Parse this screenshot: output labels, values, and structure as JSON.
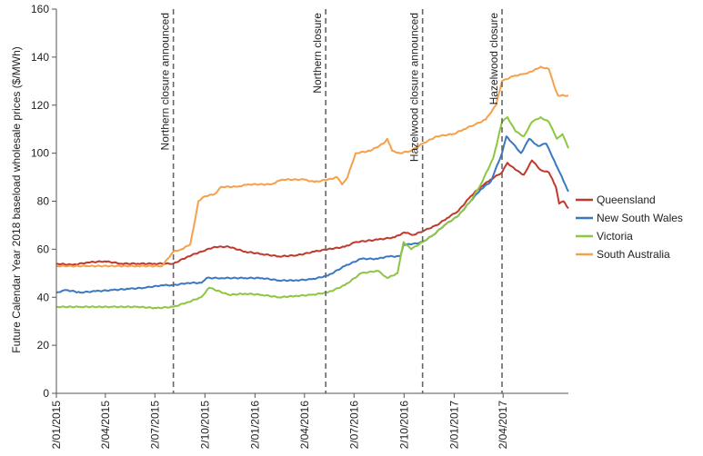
{
  "chart_data": {
    "type": "line",
    "title": "",
    "xlabel": "",
    "ylabel": "Future Calendar Year 2018 baseload wholesale prices ($/MWh)",
    "ylim": [
      0,
      160
    ],
    "yticks": [
      0,
      20,
      40,
      60,
      80,
      100,
      120,
      140,
      160
    ],
    "x_range": [
      "2015-01-02",
      "2017-07-31"
    ],
    "x_ticks": [
      {
        "date": "2015-01-02",
        "label": "2/01/2015"
      },
      {
        "date": "2015-04-02",
        "label": "2/04/2015"
      },
      {
        "date": "2015-07-02",
        "label": "2/07/2015"
      },
      {
        "date": "2015-10-02",
        "label": "2/10/2015"
      },
      {
        "date": "2016-01-02",
        "label": "2/01/2016"
      },
      {
        "date": "2016-04-02",
        "label": "2/04/2016"
      },
      {
        "date": "2016-07-02",
        "label": "2/07/2016"
      },
      {
        "date": "2016-10-02",
        "label": "2/10/2016"
      },
      {
        "date": "2017-01-02",
        "label": "2/01/2017"
      },
      {
        "date": "2017-04-02",
        "label": "2/04/2017"
      }
    ],
    "grid": false,
    "legend_position": "right",
    "annotations": [
      {
        "date": "2015-08-05",
        "label": "Northern closure announced"
      },
      {
        "date": "2016-05-11",
        "label": "Northern closure"
      },
      {
        "date": "2016-11-05",
        "label": "Hazelwood closure announced"
      },
      {
        "date": "2017-03-31",
        "label": "Hazelwood closure"
      }
    ],
    "series": [
      {
        "name": "Queensland",
        "color": "#c0392b",
        "points": [
          [
            "2015-01-02",
            54
          ],
          [
            "2015-02-01",
            53.5
          ],
          [
            "2015-03-01",
            54.5
          ],
          [
            "2015-04-01",
            55
          ],
          [
            "2015-05-01",
            54
          ],
          [
            "2015-06-01",
            54
          ],
          [
            "2015-07-01",
            54
          ],
          [
            "2015-08-05",
            54
          ],
          [
            "2015-09-01",
            57
          ],
          [
            "2015-09-25",
            59
          ],
          [
            "2015-10-20",
            61
          ],
          [
            "2015-11-15",
            61
          ],
          [
            "2015-12-15",
            59
          ],
          [
            "2016-01-15",
            58
          ],
          [
            "2016-02-15",
            57
          ],
          [
            "2016-03-20",
            57.5
          ],
          [
            "2016-04-20",
            59
          ],
          [
            "2016-05-15",
            60
          ],
          [
            "2016-06-15",
            61
          ],
          [
            "2016-07-05",
            63
          ],
          [
            "2016-08-15",
            64
          ],
          [
            "2016-09-15",
            65
          ],
          [
            "2016-10-02",
            67
          ],
          [
            "2016-10-20",
            66
          ],
          [
            "2016-11-10",
            68
          ],
          [
            "2016-12-01",
            70
          ],
          [
            "2016-12-20",
            73
          ],
          [
            "2017-01-10",
            76
          ],
          [
            "2017-02-01",
            82
          ],
          [
            "2017-02-20",
            86
          ],
          [
            "2017-03-10",
            89
          ],
          [
            "2017-03-31",
            92
          ],
          [
            "2017-04-10",
            96
          ],
          [
            "2017-04-25",
            93
          ],
          [
            "2017-05-10",
            91
          ],
          [
            "2017-05-25",
            97
          ],
          [
            "2017-06-10",
            93
          ],
          [
            "2017-06-25",
            92
          ],
          [
            "2017-07-08",
            86
          ],
          [
            "2017-07-14",
            79
          ],
          [
            "2017-07-22",
            80
          ],
          [
            "2017-07-31",
            77
          ]
        ]
      },
      {
        "name": "New South Wales",
        "color": "#3a78c2",
        "points": [
          [
            "2015-01-02",
            42
          ],
          [
            "2015-01-20",
            43
          ],
          [
            "2015-02-15",
            42
          ],
          [
            "2015-03-15",
            42.5
          ],
          [
            "2015-04-15",
            43
          ],
          [
            "2015-05-15",
            43.5
          ],
          [
            "2015-06-15",
            44
          ],
          [
            "2015-07-15",
            45
          ],
          [
            "2015-08-05",
            45
          ],
          [
            "2015-09-01",
            46
          ],
          [
            "2015-09-25",
            46
          ],
          [
            "2015-10-05",
            48
          ],
          [
            "2015-11-01",
            48
          ],
          [
            "2015-12-15",
            48
          ],
          [
            "2016-01-15",
            48
          ],
          [
            "2016-02-15",
            47
          ],
          [
            "2016-03-15",
            47
          ],
          [
            "2016-04-15",
            47.5
          ],
          [
            "2016-05-15",
            49
          ],
          [
            "2016-06-15",
            53
          ],
          [
            "2016-07-15",
            56
          ],
          [
            "2016-08-15",
            56
          ],
          [
            "2016-09-01",
            57
          ],
          [
            "2016-09-25",
            57
          ],
          [
            "2016-10-01",
            62
          ],
          [
            "2016-10-15",
            62
          ],
          [
            "2016-11-05",
            63
          ],
          [
            "2016-11-25",
            66
          ],
          [
            "2016-12-15",
            70
          ],
          [
            "2017-01-10",
            74
          ],
          [
            "2017-02-01",
            80
          ],
          [
            "2017-02-20",
            85
          ],
          [
            "2017-03-10",
            88
          ],
          [
            "2017-03-31",
            100
          ],
          [
            "2017-04-08",
            107
          ],
          [
            "2017-04-20",
            104
          ],
          [
            "2017-05-05",
            100
          ],
          [
            "2017-05-20",
            106
          ],
          [
            "2017-06-05",
            103
          ],
          [
            "2017-06-20",
            104
          ],
          [
            "2017-07-05",
            97
          ],
          [
            "2017-07-15",
            92
          ],
          [
            "2017-07-25",
            87
          ],
          [
            "2017-07-31",
            84
          ]
        ]
      },
      {
        "name": "Victoria",
        "color": "#8dc63f",
        "points": [
          [
            "2015-01-02",
            36
          ],
          [
            "2015-02-15",
            36
          ],
          [
            "2015-04-15",
            36
          ],
          [
            "2015-06-01",
            36
          ],
          [
            "2015-07-05",
            35.5
          ],
          [
            "2015-08-05",
            36
          ],
          [
            "2015-09-01",
            38
          ],
          [
            "2015-09-25",
            40
          ],
          [
            "2015-10-10",
            44
          ],
          [
            "2015-11-15",
            41
          ],
          [
            "2015-12-15",
            41.5
          ],
          [
            "2016-01-15",
            41
          ],
          [
            "2016-02-15",
            40
          ],
          [
            "2016-03-15",
            40.5
          ],
          [
            "2016-04-15",
            41
          ],
          [
            "2016-05-15",
            42
          ],
          [
            "2016-06-15",
            45
          ],
          [
            "2016-07-15",
            50
          ],
          [
            "2016-08-15",
            51
          ],
          [
            "2016-09-01",
            48
          ],
          [
            "2016-09-20",
            50
          ],
          [
            "2016-10-01",
            63
          ],
          [
            "2016-10-15",
            60
          ],
          [
            "2016-11-05",
            63
          ],
          [
            "2016-11-25",
            66
          ],
          [
            "2016-12-15",
            70
          ],
          [
            "2017-01-10",
            74
          ],
          [
            "2017-02-01",
            80
          ],
          [
            "2017-02-20",
            87
          ],
          [
            "2017-03-15",
            98
          ],
          [
            "2017-03-31",
            113
          ],
          [
            "2017-04-10",
            115
          ],
          [
            "2017-04-25",
            109
          ],
          [
            "2017-05-10",
            107
          ],
          [
            "2017-05-25",
            113
          ],
          [
            "2017-06-10",
            115
          ],
          [
            "2017-06-25",
            113
          ],
          [
            "2017-07-10",
            106
          ],
          [
            "2017-07-20",
            108
          ],
          [
            "2017-07-31",
            102
          ]
        ]
      },
      {
        "name": "South Australia",
        "color": "#f5a04a",
        "points": [
          [
            "2015-01-02",
            53
          ],
          [
            "2015-03-01",
            53
          ],
          [
            "2015-06-01",
            53
          ],
          [
            "2015-07-15",
            53
          ],
          [
            "2015-08-05",
            59
          ],
          [
            "2015-08-20",
            60
          ],
          [
            "2015-09-05",
            62
          ],
          [
            "2015-09-12",
            70
          ],
          [
            "2015-09-20",
            80
          ],
          [
            "2015-10-01",
            82
          ],
          [
            "2015-10-20",
            83
          ],
          [
            "2015-11-01",
            86
          ],
          [
            "2015-12-01",
            86
          ],
          [
            "2015-12-20",
            87
          ],
          [
            "2016-02-01",
            87
          ],
          [
            "2016-02-20",
            89
          ],
          [
            "2016-04-01",
            89
          ],
          [
            "2016-04-20",
            88
          ],
          [
            "2016-05-15",
            89
          ],
          [
            "2016-06-01",
            90
          ],
          [
            "2016-06-10",
            87
          ],
          [
            "2016-06-20",
            90
          ],
          [
            "2016-07-05",
            100
          ],
          [
            "2016-08-01",
            101
          ],
          [
            "2016-08-25",
            104
          ],
          [
            "2016-09-01",
            106
          ],
          [
            "2016-09-10",
            101
          ],
          [
            "2016-09-25",
            100
          ],
          [
            "2016-10-15",
            101
          ],
          [
            "2016-11-05",
            104
          ],
          [
            "2016-12-01",
            107
          ],
          [
            "2017-01-01",
            108
          ],
          [
            "2017-01-20",
            110
          ],
          [
            "2017-02-10",
            112
          ],
          [
            "2017-03-01",
            114
          ],
          [
            "2017-03-20",
            120
          ],
          [
            "2017-03-31",
            130
          ],
          [
            "2017-04-20",
            132
          ],
          [
            "2017-05-10",
            133
          ],
          [
            "2017-05-25",
            134
          ],
          [
            "2017-06-10",
            136
          ],
          [
            "2017-06-25",
            135
          ],
          [
            "2017-07-05",
            128
          ],
          [
            "2017-07-12",
            124
          ],
          [
            "2017-07-31",
            124
          ]
        ]
      }
    ]
  }
}
